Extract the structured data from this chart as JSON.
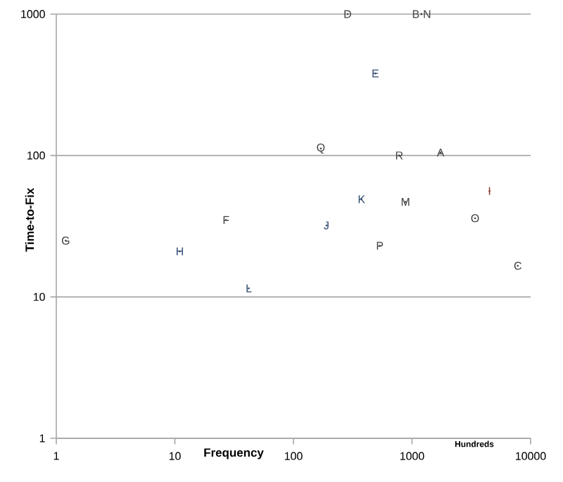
{
  "chart_data": {
    "type": "scatter",
    "xlabel": "Frequency",
    "ylabel": "Time-to-Fix",
    "x": [
      1740,
      1200,
      7800,
      286,
      490,
      27,
      1.2,
      11,
      4500,
      190,
      375,
      42,
      880,
      1200,
      3400,
      535,
      170,
      780
    ],
    "values": [
      105,
      1000,
      16.6,
      1000,
      380,
      35,
      25,
      21,
      56,
      32,
      49,
      11.5,
      47,
      1000,
      36,
      23,
      112,
      100
    ],
    "value_labels": [
      "A",
      "B",
      "C",
      "D",
      "E",
      "F",
      "G",
      "H",
      "I",
      "J",
      "K",
      "L",
      "M",
      "N",
      "O",
      "P",
      "Q",
      "R"
    ],
    "colors": [
      "#404040",
      "#404040",
      "#404040",
      "#404040",
      "#2f4a6e",
      "#404040",
      "#404040",
      "#2f4a6e",
      "#8a3a2a",
      "#2f4a6e",
      "#2f4a6e",
      "#2f4a6e",
      "#404040",
      "#404040",
      "#404040",
      "#404040",
      "#404040",
      "#404040"
    ],
    "log": "xy",
    "xlim": [
      1,
      10000
    ],
    "ylim": [
      1,
      1000
    ],
    "xticks": [
      1,
      10,
      100,
      1000,
      10000
    ],
    "yticks": [
      1,
      10,
      100,
      1000
    ],
    "grid": "y",
    "annotations": [
      "Hundreds"
    ]
  }
}
